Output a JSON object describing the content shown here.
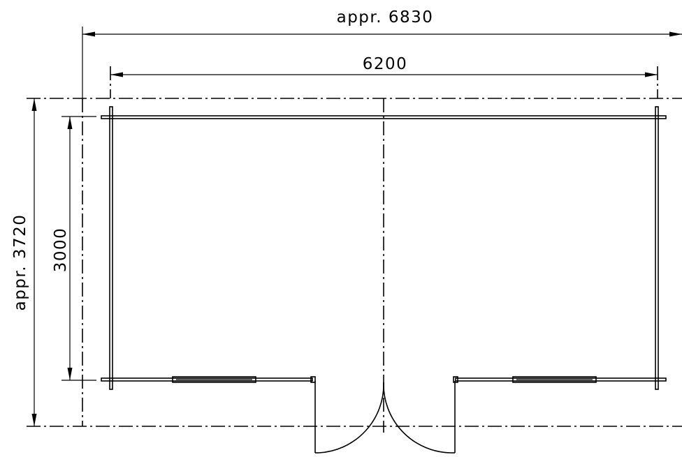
{
  "dimensions": {
    "overall_width": "appr. 6830",
    "inner_width": "6200",
    "overall_depth": "appr. 3720",
    "inner_depth": "3000"
  }
}
